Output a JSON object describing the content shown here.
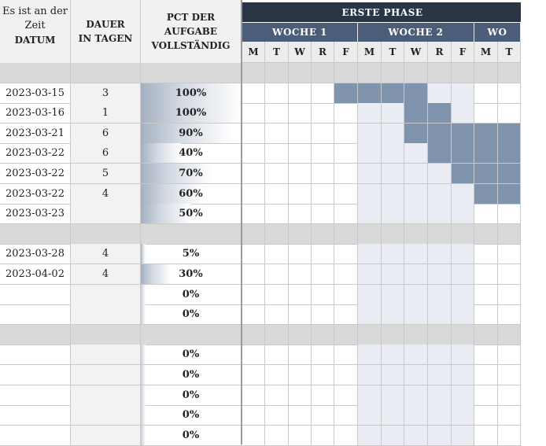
{
  "header": {
    "date_col": [
      "Es ist an der",
      "Zeit",
      "DATUM"
    ],
    "duration_col": [
      "DAUER",
      "IN TAGEN"
    ],
    "pct_col": [
      "PCT DER AUFGABE",
      "VOLLSTÄNDIG"
    ],
    "phase": "ERSTE PHASE",
    "weeks": [
      "WOCHE 1",
      "WOCHE 2",
      "WO"
    ],
    "days": [
      "M",
      "T",
      "W",
      "R",
      "F",
      "M",
      "T",
      "W",
      "R",
      "F",
      "M",
      "T"
    ]
  },
  "colors": {
    "dark": "#2a3545",
    "week": "#4b5d78",
    "gantt_fill": "#7f93ad",
    "week_shade": "#e9edf3"
  },
  "rows": [
    {
      "type": "section"
    },
    {
      "type": "task",
      "date": "2023-03-15",
      "duration": "3",
      "pct": "100%",
      "pct_value": 1.0,
      "gantt": [
        0,
        0,
        0,
        0,
        1,
        1,
        1,
        1,
        0,
        0,
        0,
        0
      ]
    },
    {
      "type": "task",
      "date": "2023-03-16",
      "duration": "1",
      "pct": "100%",
      "pct_value": 1.0,
      "gantt": [
        0,
        0,
        0,
        0,
        0,
        0,
        0,
        1,
        1,
        0,
        0,
        0
      ]
    },
    {
      "type": "task",
      "date": "2023-03-21",
      "duration": "6",
      "pct": "90%",
      "pct_value": 0.9,
      "gantt": [
        0,
        0,
        0,
        0,
        0,
        0,
        0,
        1,
        1,
        1,
        1,
        1
      ]
    },
    {
      "type": "task",
      "date": "2023-03-22",
      "duration": "6",
      "pct": "40%",
      "pct_value": 0.4,
      "gantt": [
        0,
        0,
        0,
        0,
        0,
        0,
        0,
        0,
        1,
        1,
        1,
        1
      ]
    },
    {
      "type": "task",
      "date": "2023-03-22",
      "duration": "5",
      "pct": "70%",
      "pct_value": 0.7,
      "gantt": [
        0,
        0,
        0,
        0,
        0,
        0,
        0,
        0,
        0,
        1,
        1,
        1
      ]
    },
    {
      "type": "task",
      "date": "2023-03-22",
      "duration": "4",
      "pct": "60%",
      "pct_value": 0.6,
      "gantt": [
        0,
        0,
        0,
        0,
        0,
        0,
        0,
        0,
        0,
        0,
        1,
        1
      ]
    },
    {
      "type": "task",
      "date": "2023-03-23",
      "duration": "",
      "pct": "50%",
      "pct_value": 0.5,
      "gantt": [
        0,
        0,
        0,
        0,
        0,
        0,
        0,
        0,
        0,
        0,
        0,
        0
      ]
    },
    {
      "type": "section"
    },
    {
      "type": "task",
      "date": "2023-03-28",
      "duration": "4",
      "pct": "5%",
      "pct_value": 0.05,
      "gantt": [
        0,
        0,
        0,
        0,
        0,
        0,
        0,
        0,
        0,
        0,
        0,
        0
      ]
    },
    {
      "type": "task",
      "date": "2023-04-02",
      "duration": "4",
      "pct": "30%",
      "pct_value": 0.3,
      "gantt": [
        0,
        0,
        0,
        0,
        0,
        0,
        0,
        0,
        0,
        0,
        0,
        0
      ]
    },
    {
      "type": "task",
      "date": "",
      "duration": "",
      "pct": "0%",
      "pct_value": 0,
      "gantt": [
        0,
        0,
        0,
        0,
        0,
        0,
        0,
        0,
        0,
        0,
        0,
        0
      ]
    },
    {
      "type": "task",
      "date": "",
      "duration": "",
      "pct": "0%",
      "pct_value": 0,
      "gantt": [
        0,
        0,
        0,
        0,
        0,
        0,
        0,
        0,
        0,
        0,
        0,
        0
      ]
    },
    {
      "type": "section"
    },
    {
      "type": "task",
      "date": "",
      "duration": "",
      "pct": "0%",
      "pct_value": 0,
      "gantt": [
        0,
        0,
        0,
        0,
        0,
        0,
        0,
        0,
        0,
        0,
        0,
        0
      ]
    },
    {
      "type": "task",
      "date": "",
      "duration": "",
      "pct": "0%",
      "pct_value": 0,
      "gantt": [
        0,
        0,
        0,
        0,
        0,
        0,
        0,
        0,
        0,
        0,
        0,
        0
      ]
    },
    {
      "type": "task",
      "date": "",
      "duration": "",
      "pct": "0%",
      "pct_value": 0,
      "gantt": [
        0,
        0,
        0,
        0,
        0,
        0,
        0,
        0,
        0,
        0,
        0,
        0
      ]
    },
    {
      "type": "task",
      "date": "",
      "duration": "",
      "pct": "0%",
      "pct_value": 0,
      "gantt": [
        0,
        0,
        0,
        0,
        0,
        0,
        0,
        0,
        0,
        0,
        0,
        0
      ]
    },
    {
      "type": "task",
      "date": "",
      "duration": "",
      "pct": "0%",
      "pct_value": 0,
      "gantt": [
        0,
        0,
        0,
        0,
        0,
        0,
        0,
        0,
        0,
        0,
        0,
        0
      ]
    }
  ]
}
